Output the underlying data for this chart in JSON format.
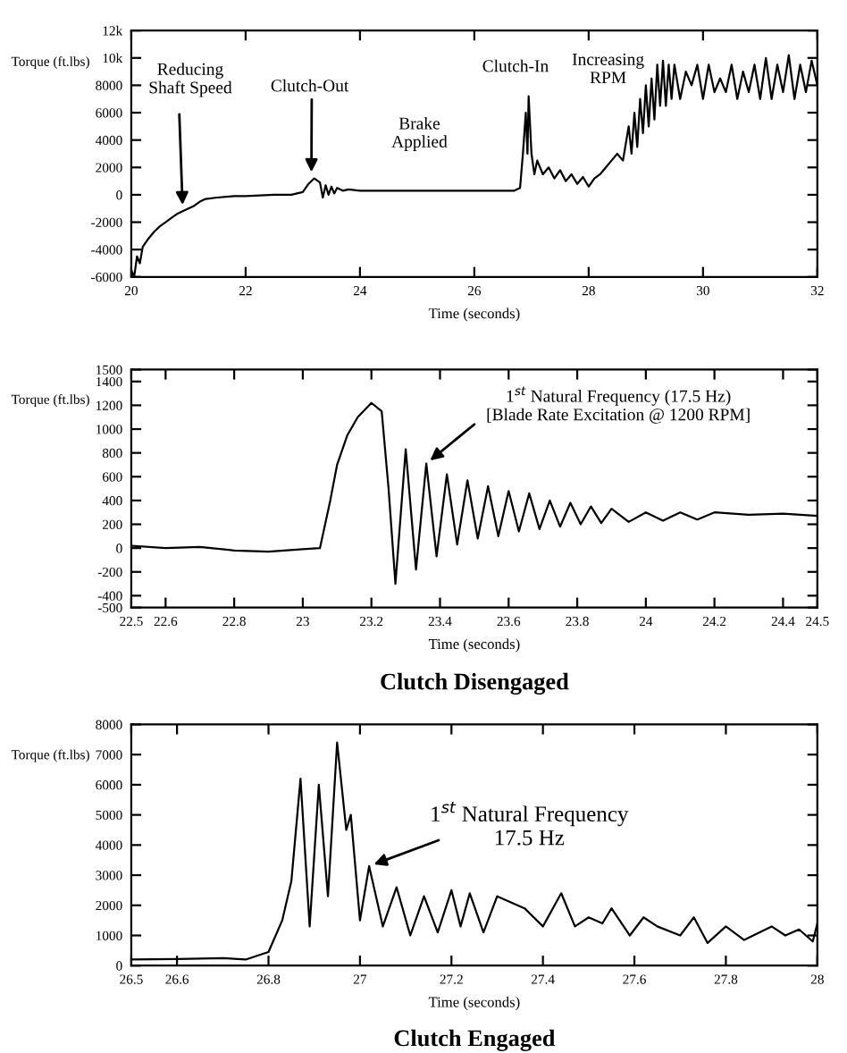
{
  "chart_data": [
    {
      "type": "line",
      "xlabel": "Time (seconds)",
      "ylabel": "Torque (ft.lbs)",
      "xlim": [
        20,
        32
      ],
      "xticks": [
        20,
        22,
        24,
        26,
        28,
        30,
        32
      ],
      "ylim": [
        -6000,
        12000
      ],
      "yticks": [
        -6000,
        -4000,
        -2000,
        0,
        2000,
        4000,
        6000,
        8000,
        {
          "value": 10000,
          "label": "10k"
        },
        {
          "value": 12000,
          "label": "12k"
        }
      ],
      "series": [
        {
          "color": "#000000",
          "x": [
            20.0,
            20.05,
            20.1,
            20.15,
            20.2,
            20.3,
            20.4,
            20.5,
            20.6,
            20.7,
            20.8,
            20.9,
            21.0,
            21.1,
            21.2,
            21.3,
            21.5,
            21.8,
            22.0,
            22.5,
            22.8,
            23.0,
            23.1,
            23.2,
            23.3,
            23.35,
            23.4,
            23.45,
            23.5,
            23.55,
            23.6,
            23.7,
            23.8,
            24.0,
            25.0,
            26.0,
            26.7,
            26.8,
            26.85,
            26.9,
            26.93,
            26.95,
            27.0,
            27.05,
            27.1,
            27.2,
            27.3,
            27.4,
            27.5,
            27.6,
            27.7,
            27.8,
            27.9,
            28.0,
            28.1,
            28.2,
            28.3,
            28.4,
            28.5,
            28.6,
            28.7,
            28.75,
            28.8,
            28.85,
            28.9,
            28.95,
            29.0,
            29.05,
            29.1,
            29.15,
            29.2,
            29.25,
            29.3,
            29.35,
            29.4,
            29.45,
            29.5,
            29.6,
            29.7,
            29.8,
            29.9,
            30.0,
            30.1,
            30.2,
            30.3,
            30.4,
            30.5,
            30.6,
            30.7,
            30.8,
            30.9,
            31.0,
            31.1,
            31.2,
            31.3,
            31.4,
            31.5,
            31.6,
            31.7,
            31.8,
            31.9,
            32.0
          ],
          "values": [
            -5500,
            -6000,
            -4500,
            -5000,
            -3800,
            -3200,
            -2700,
            -2300,
            -2000,
            -1700,
            -1400,
            -1200,
            -1000,
            -800,
            -500,
            -300,
            -200,
            -100,
            -100,
            0,
            0,
            200,
            800,
            1200,
            900,
            -200,
            700,
            0,
            600,
            100,
            500,
            300,
            400,
            300,
            300,
            300,
            300,
            500,
            3000,
            6000,
            3000,
            7200,
            3000,
            1500,
            2500,
            1500,
            2000,
            1200,
            1800,
            1000,
            1500,
            800,
            1300,
            600,
            1200,
            1500,
            2000,
            2500,
            3000,
            2500,
            5000,
            3000,
            6000,
            3500,
            7000,
            4500,
            8000,
            5000,
            8500,
            5500,
            9500,
            6500,
            9800,
            6500,
            9500,
            7000,
            9500,
            7000,
            9000,
            8000,
            9500,
            7000,
            9500,
            7500,
            8500,
            7500,
            9500,
            7000,
            9000,
            7500,
            9500,
            7000,
            10000,
            7000,
            9500,
            7500,
            10200,
            7000,
            9500,
            7500,
            9800,
            8000
          ]
        }
      ],
      "annotations": [
        {
          "text": "Reducing\nShaft Speed",
          "x": 20.9,
          "y": -1100
        },
        {
          "text": "Clutch-Out",
          "x": 23.15,
          "y": 1300
        },
        "Brake\nApplied",
        "Clutch-In",
        "Increasing\nRPM"
      ]
    },
    {
      "type": "line",
      "xlabel": "Time (seconds)",
      "ylabel": "Torque (ft.lbs)",
      "xlim": [
        22.5,
        24.5
      ],
      "xticks": [
        22.5,
        22.6,
        22.8,
        23,
        23.2,
        23.4,
        23.6,
        23.8,
        24,
        24.2,
        24.4,
        24.5
      ],
      "ylim": [
        -500,
        1500
      ],
      "yticks": [
        -500,
        -400,
        -200,
        0,
        200,
        400,
        600,
        800,
        1000,
        1200,
        1400,
        1500
      ],
      "series": [
        {
          "color": "#000000",
          "x": [
            22.5,
            22.6,
            22.7,
            22.8,
            22.9,
            23.0,
            23.05,
            23.08,
            23.1,
            23.13,
            23.16,
            23.2,
            23.23,
            23.25,
            23.27,
            23.3,
            23.33,
            23.36,
            23.39,
            23.42,
            23.45,
            23.48,
            23.51,
            23.54,
            23.57,
            23.6,
            23.63,
            23.66,
            23.69,
            23.72,
            23.75,
            23.78,
            23.81,
            23.84,
            23.87,
            23.9,
            23.95,
            24.0,
            24.05,
            24.1,
            24.15,
            24.2,
            24.3,
            24.4,
            24.5
          ],
          "values": [
            20,
            0,
            10,
            -20,
            -30,
            -10,
            0,
            400,
            700,
            950,
            1100,
            1220,
            1150,
            500,
            -300,
            830,
            -180,
            710,
            -70,
            620,
            30,
            570,
            80,
            520,
            100,
            480,
            140,
            460,
            160,
            400,
            180,
            380,
            200,
            350,
            210,
            330,
            220,
            300,
            230,
            300,
            240,
            300,
            280,
            290,
            270
          ]
        }
      ],
      "annotations": [
        {
          "text": "1$^{st}$ Natural Frequency (17.5 Hz)\n[Blade Rate Excitation @ 1200 RPM]",
          "x": 23.36,
          "y": 710
        },
        "Clutch Disengaged"
      ]
    },
    {
      "type": "line",
      "xlabel": "Time (seconds)",
      "ylabel": "Torque (ft.lbs)",
      "xlim": [
        26.5,
        28
      ],
      "xticks": [
        26.5,
        26.6,
        26.8,
        27,
        27.2,
        27.4,
        27.6,
        27.8,
        28
      ],
      "ylim": [
        0,
        8000
      ],
      "yticks": [
        0,
        1000,
        2000,
        3000,
        4000,
        5000,
        6000,
        7000,
        8000
      ],
      "series": [
        {
          "color": "#000000",
          "x": [
            26.5,
            26.6,
            26.7,
            26.75,
            26.8,
            26.83,
            26.85,
            26.87,
            26.89,
            26.91,
            26.93,
            26.95,
            26.97,
            26.98,
            27.0,
            27.02,
            27.05,
            27.08,
            27.11,
            27.14,
            27.17,
            27.2,
            27.22,
            27.24,
            27.27,
            27.3,
            27.33,
            27.36,
            27.4,
            27.44,
            27.47,
            27.5,
            27.53,
            27.55,
            27.59,
            27.62,
            27.65,
            27.7,
            27.73,
            27.76,
            27.8,
            27.84,
            27.9,
            27.93,
            27.96,
            27.99,
            28.0
          ],
          "values": [
            200,
            220,
            250,
            200,
            450,
            1500,
            2800,
            6200,
            1300,
            6000,
            2300,
            7400,
            4500,
            5000,
            1500,
            3300,
            1300,
            2600,
            1000,
            2300,
            1100,
            2500,
            1300,
            2400,
            1100,
            2300,
            2100,
            1900,
            1300,
            2400,
            1300,
            1600,
            1400,
            1900,
            1000,
            1600,
            1300,
            1000,
            1600,
            750,
            1300,
            850,
            1300,
            1000,
            1200,
            800,
            1400
          ]
        }
      ],
      "annotations": [
        {
          "text": "1$^{st}$ Natural Frequency\n17.5 Hz",
          "x": 27.02,
          "y": 3300
        },
        "Clutch Engaged"
      ]
    }
  ]
}
